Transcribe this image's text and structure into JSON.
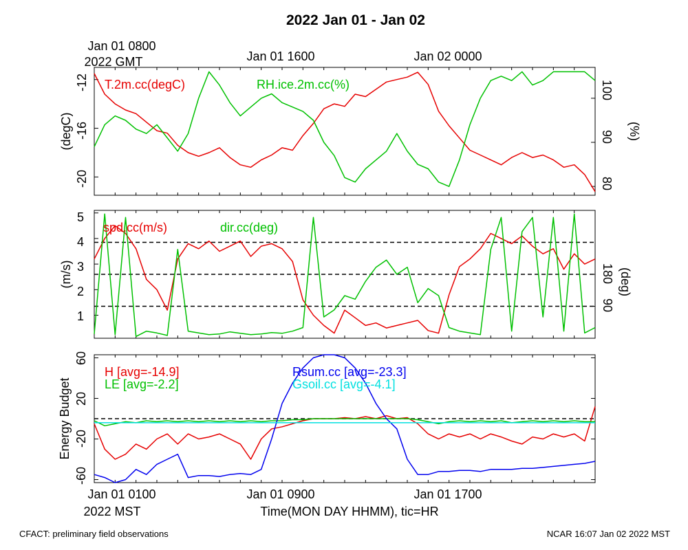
{
  "title": "2022 Jan 01 - Jan 02",
  "top_times": [
    "Jan 01 0800",
    "Jan 01 1600",
    "Jan 02 0000"
  ],
  "top_time_unit": "2022 GMT",
  "bottom_times": [
    "Jan 01 0100",
    "Jan 01 0900",
    "Jan 01 1700"
  ],
  "bottom_time_unit": "2022 MST",
  "xlabel": "Time(MON DAY HHMM), tic=HR",
  "footer_left": "CFACT: preliminary field observations",
  "footer_right": "NCAR 16:07 Jan 02 2022 MST",
  "colors": {
    "red": "#e60000",
    "green": "#00c000",
    "blue": "#0000ee",
    "cyan": "#00e0e0",
    "black": "#000000"
  },
  "chart_data": [
    {
      "type": "line",
      "panel": "temperature-humidity",
      "xlim": [
        0,
        24
      ],
      "x_ticks": [
        0,
        1,
        2,
        3,
        4,
        5,
        6,
        7,
        8,
        9,
        10,
        11,
        12,
        13,
        14,
        15,
        16,
        17,
        18,
        19,
        20,
        21,
        22,
        23,
        24
      ],
      "left_axis": {
        "label": "(degC)",
        "ylim": [
          -21.5,
          -11
        ],
        "ticks": [
          -12,
          -16,
          -20
        ],
        "tick_labels": [
          "-12",
          "-16",
          "-20"
        ]
      },
      "right_axis": {
        "label": "(%)",
        "ylim": [
          78,
          107
        ],
        "ticks": [
          80,
          90,
          100
        ],
        "tick_labels": [
          "80",
          "90",
          "100"
        ]
      },
      "series": [
        {
          "name": "T.2m.cc(degC)",
          "axis": "left",
          "color": "red",
          "x": [
            0,
            0.5,
            1,
            1.5,
            2,
            2.5,
            3,
            3.5,
            4,
            4.5,
            5,
            5.5,
            6,
            6.5,
            7,
            7.5,
            8,
            8.5,
            9,
            9.5,
            10,
            10.5,
            11,
            11.5,
            12,
            12.5,
            13,
            13.5,
            14,
            14.5,
            15,
            15.5,
            16,
            16.5,
            17,
            17.5,
            18,
            18.5,
            19,
            19.5,
            20,
            20.5,
            21,
            21.5,
            22,
            22.5,
            23,
            23.5,
            24
          ],
          "values": [
            -11.5,
            -13.2,
            -14.0,
            -14.5,
            -14.8,
            -15.5,
            -16.2,
            -16.4,
            -17.4,
            -18.0,
            -18.3,
            -18.0,
            -17.6,
            -18.4,
            -19.0,
            -19.2,
            -18.6,
            -18.2,
            -17.6,
            -17.8,
            -16.6,
            -15.6,
            -14.4,
            -14.0,
            -14.2,
            -13.2,
            -13.4,
            -12.8,
            -12.2,
            -12.0,
            -11.8,
            -11.4,
            -12.4,
            -14.6,
            -15.8,
            -16.8,
            -17.8,
            -18.2,
            -18.6,
            -19.0,
            -18.4,
            -18.0,
            -18.4,
            -18.2,
            -18.6,
            -19.2,
            -19.0,
            -19.8,
            -21.2
          ]
        },
        {
          "name": "RH.ice.2m.cc(%)",
          "axis": "right",
          "color": "green",
          "x": [
            0,
            0.5,
            1,
            1.5,
            2,
            2.5,
            3,
            3.5,
            4,
            4.5,
            5,
            5.5,
            6,
            6.5,
            7,
            7.5,
            8,
            8.5,
            9,
            9.5,
            10,
            10.5,
            11,
            11.5,
            12,
            12.5,
            13,
            13.5,
            14,
            14.5,
            15,
            15.5,
            16,
            16.5,
            17,
            17.5,
            18,
            18.5,
            19,
            19.5,
            20,
            20.5,
            21,
            21.5,
            22,
            22.5,
            23,
            23.5,
            24
          ],
          "values": [
            89,
            94,
            96,
            95,
            93,
            92,
            94,
            91,
            88,
            92,
            100,
            106,
            103,
            99,
            96,
            98,
            100,
            101,
            99,
            98,
            97,
            95,
            90,
            87,
            82,
            81,
            84,
            86,
            88,
            92,
            88,
            85,
            84,
            81,
            80,
            86,
            94,
            100,
            104,
            105,
            104,
            106,
            103,
            104,
            106,
            106,
            106,
            106,
            104
          ]
        }
      ]
    },
    {
      "type": "line",
      "panel": "wind",
      "xlim": [
        0,
        24
      ],
      "x_ticks": [
        0,
        1,
        2,
        3,
        4,
        5,
        6,
        7,
        8,
        9,
        10,
        11,
        12,
        13,
        14,
        15,
        16,
        17,
        18,
        19,
        20,
        21,
        22,
        23,
        24
      ],
      "left_axis": {
        "label": "(m/s)",
        "ylim": [
          0.1,
          5.1
        ],
        "ticks": [
          1,
          2,
          3,
          4,
          5
        ],
        "tick_labels": [
          "1",
          "2",
          "3",
          "4",
          "5"
        ]
      },
      "right_axis": {
        "label": "(deg)",
        "ylim": [
          0,
          360
        ],
        "ticks": [
          90,
          180
        ],
        "tick_labels": [
          "90",
          "180"
        ]
      },
      "reference_lines_deg": [
        90,
        180,
        270
      ],
      "series": [
        {
          "name": "spd.cc(m/s)",
          "axis": "left",
          "color": "red",
          "x": [
            0,
            0.5,
            1,
            1.5,
            2,
            2.5,
            3,
            3.5,
            4,
            4.5,
            5,
            5.5,
            6,
            6.5,
            7,
            7.5,
            8,
            8.5,
            9,
            9.5,
            10,
            10.5,
            11,
            11.5,
            12,
            12.5,
            13,
            13.5,
            14,
            14.5,
            15,
            15.5,
            16,
            16.5,
            17,
            17.5,
            18,
            18.5,
            19,
            19.5,
            20,
            20.5,
            21,
            21.5,
            22,
            22.5,
            23,
            23.5,
            24
          ],
          "values": [
            3.2,
            4.0,
            4.5,
            4.2,
            3.6,
            2.4,
            2.0,
            1.2,
            3.2,
            3.8,
            3.6,
            3.9,
            3.5,
            3.7,
            3.9,
            3.3,
            3.7,
            3.8,
            3.6,
            3.1,
            1.6,
            1.0,
            0.6,
            0.3,
            1.2,
            0.9,
            0.6,
            0.7,
            0.5,
            0.6,
            0.7,
            0.8,
            0.4,
            0.3,
            1.8,
            2.9,
            3.2,
            3.6,
            4.2,
            4.0,
            3.8,
            4.1,
            3.7,
            3.4,
            3.6,
            2.8,
            3.4,
            3.0,
            3.2
          ]
        },
        {
          "name": "dir.cc(deg)",
          "axis": "right",
          "color": "green",
          "x": [
            0,
            0.5,
            1,
            1.5,
            2,
            2.5,
            3,
            3.5,
            4,
            4.5,
            5,
            5.5,
            6,
            6.5,
            7,
            7.5,
            8,
            8.5,
            9,
            9.5,
            10,
            10.5,
            11,
            11.5,
            12,
            12.5,
            13,
            13.5,
            14,
            14.5,
            15,
            15.5,
            16,
            16.5,
            17,
            17.5,
            18,
            18.5,
            19,
            19.5,
            20,
            20.5,
            21,
            21.5,
            22,
            22.5,
            23,
            23.5,
            24
          ],
          "values": [
            12,
            350,
            10,
            340,
            5,
            20,
            15,
            8,
            250,
            20,
            15,
            10,
            12,
            18,
            14,
            10,
            12,
            16,
            14,
            20,
            30,
            340,
            60,
            80,
            120,
            110,
            160,
            200,
            220,
            180,
            200,
            100,
            140,
            120,
            30,
            20,
            15,
            10,
            250,
            340,
            20,
            300,
            340,
            60,
            340,
            20,
            350,
            15,
            30
          ]
        }
      ]
    },
    {
      "type": "line",
      "panel": "energy-budget",
      "xlim": [
        0,
        24
      ],
      "x_ticks": [
        0,
        1,
        2,
        3,
        4,
        5,
        6,
        7,
        8,
        9,
        10,
        11,
        12,
        13,
        14,
        15,
        16,
        17,
        18,
        19,
        20,
        21,
        22,
        23,
        24
      ],
      "ylabel": "Energy Budget",
      "ylim": [
        -63,
        63
      ],
      "y_ticks": [
        60,
        20,
        -20,
        -60
      ],
      "y_tick_labels": [
        "60",
        "20",
        "-20",
        "-60"
      ],
      "zero_line": 0,
      "series": [
        {
          "name": "H",
          "avg": -14.9,
          "legend": "H [avg=-14.9]",
          "color": "red",
          "x": [
            0,
            0.5,
            1,
            1.5,
            2,
            2.5,
            3,
            3.5,
            4,
            4.5,
            5,
            5.5,
            6,
            6.5,
            7,
            7.5,
            8,
            8.5,
            9,
            9.5,
            10,
            10.5,
            11,
            11.5,
            12,
            12.5,
            13,
            13.5,
            14,
            14.5,
            15,
            15.5,
            16,
            16.5,
            17,
            17.5,
            18,
            18.5,
            19,
            19.5,
            20,
            20.5,
            21,
            21.5,
            22,
            22.5,
            23,
            23.5,
            24
          ],
          "values": [
            -5,
            -30,
            -40,
            -35,
            -25,
            -30,
            -20,
            -15,
            -25,
            -15,
            -20,
            -18,
            -15,
            -20,
            -25,
            -40,
            -20,
            -10,
            -8,
            -5,
            -2,
            0,
            0,
            0,
            1,
            0,
            2,
            0,
            3,
            0,
            1,
            -5,
            -15,
            -20,
            -15,
            -18,
            -15,
            -20,
            -15,
            -18,
            -22,
            -25,
            -18,
            -20,
            -15,
            -18,
            -15,
            -22,
            12
          ]
        },
        {
          "name": "LE",
          "avg": -2.2,
          "legend": "LE [avg=-2.2]",
          "color": "green",
          "x": [
            0,
            0.5,
            1,
            1.5,
            2,
            2.5,
            3,
            3.5,
            4,
            4.5,
            5,
            5.5,
            6,
            6.5,
            7,
            7.5,
            8,
            8.5,
            9,
            9.5,
            10,
            10.5,
            11,
            11.5,
            12,
            12.5,
            13,
            13.5,
            14,
            14.5,
            15,
            15.5,
            16,
            16.5,
            17,
            17.5,
            18,
            18.5,
            19,
            19.5,
            20,
            20.5,
            21,
            21.5,
            22,
            22.5,
            23,
            23.5,
            24
          ],
          "values": [
            -2,
            -7,
            -5,
            -3,
            -4,
            -2,
            -3,
            -2,
            -3,
            -2,
            -3,
            -2,
            -3,
            -2,
            -3,
            -2,
            -3,
            -2,
            -2,
            -1,
            -1,
            0,
            0,
            0,
            0,
            0,
            0,
            0,
            0,
            0,
            0,
            -1,
            -3,
            -5,
            -3,
            -2,
            -3,
            -2,
            -3,
            -2,
            -4,
            -3,
            -2,
            -3,
            -2,
            -3,
            -2,
            -3,
            -3
          ]
        },
        {
          "name": "Rsum.cc",
          "avg": -23.3,
          "legend": "Rsum.cc [avg=-23.3]",
          "color": "blue",
          "x": [
            0,
            0.5,
            1,
            1.5,
            2,
            2.5,
            3,
            3.5,
            4,
            4.5,
            5,
            5.5,
            6,
            6.5,
            7,
            7.5,
            8,
            8.5,
            9,
            9.5,
            10,
            10.5,
            11,
            11.5,
            12,
            12.5,
            13,
            13.5,
            14,
            14.5,
            15,
            15.5,
            16,
            16.5,
            17,
            17.5,
            18,
            18.5,
            19,
            19.5,
            20,
            20.5,
            21,
            21.5,
            22,
            22.5,
            23,
            23.5,
            24
          ],
          "values": [
            -55,
            -58,
            -64,
            -60,
            -50,
            -55,
            -45,
            -40,
            -35,
            -58,
            -56,
            -56,
            -57,
            -55,
            -54,
            -55,
            -50,
            -20,
            15,
            35,
            50,
            60,
            66,
            65,
            60,
            50,
            35,
            15,
            0,
            -10,
            -40,
            -55,
            -55,
            -52,
            -52,
            -51,
            -51,
            -52,
            -50,
            -50,
            -50,
            -49,
            -49,
            -48,
            -47,
            -46,
            -45,
            -44,
            -42
          ]
        },
        {
          "name": "Gsoil.cc",
          "avg": -4.1,
          "legend": "Gsoil.cc [avg=-4.1]",
          "color": "cyan",
          "x": [
            0,
            24
          ],
          "values": [
            -4,
            -4
          ]
        }
      ]
    }
  ]
}
